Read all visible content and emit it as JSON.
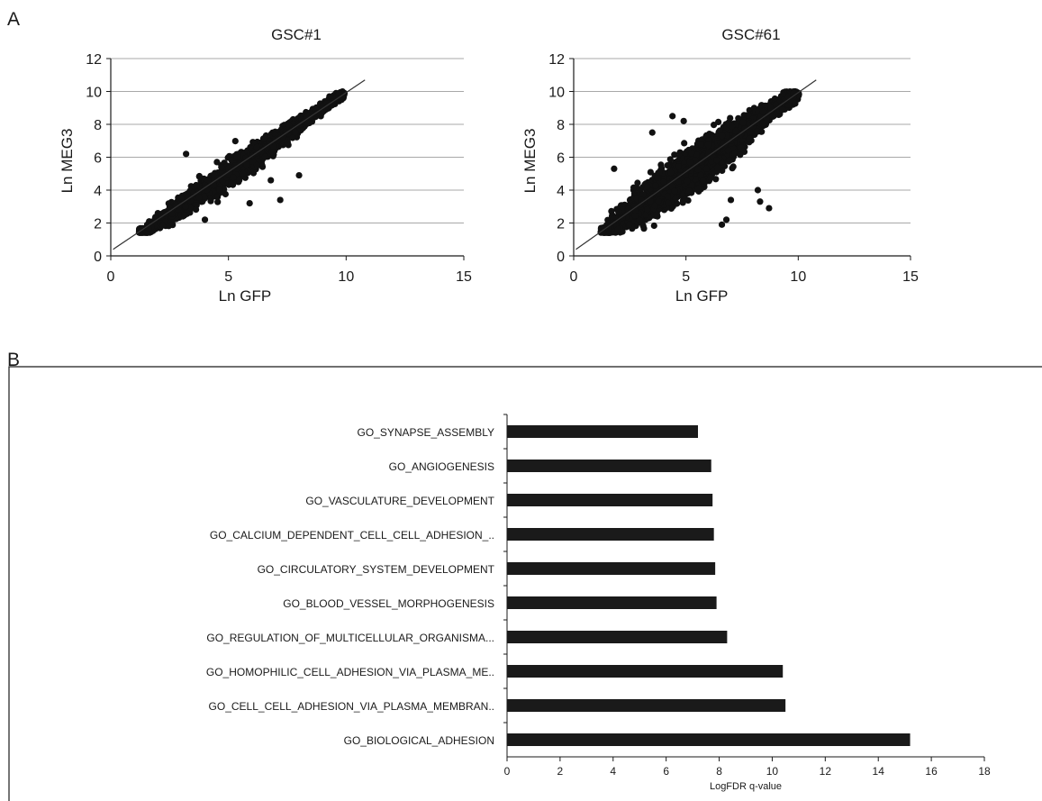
{
  "panels": {
    "a_label": "A",
    "b_label": "B"
  },
  "chart_data": [
    {
      "type": "scatter",
      "title": "GSC#1",
      "xlabel": "Ln GFP",
      "ylabel": "Ln MEG3",
      "xlim": [
        0,
        15
      ],
      "ylim": [
        0,
        12
      ],
      "xticks": [
        0,
        5,
        10,
        15
      ],
      "yticks": [
        0,
        2,
        4,
        6,
        8,
        10,
        12
      ],
      "grid": "horizontal",
      "trendline": {
        "x": [
          0.1,
          10.8
        ],
        "y": [
          0.4,
          10.7
        ]
      },
      "point_cloud": {
        "x_range": [
          1.2,
          9.9
        ],
        "y_range": [
          1.4,
          10.0
        ],
        "spread": 0.55
      },
      "points": [
        [
          1.3,
          1.6
        ],
        [
          2.0,
          2.6
        ],
        [
          3.0,
          3.5
        ],
        [
          4.0,
          4.3
        ],
        [
          5.0,
          5.3
        ],
        [
          6.0,
          6.1
        ],
        [
          7.0,
          7.1
        ],
        [
          8.0,
          8.0
        ],
        [
          9.0,
          9.1
        ],
        [
          9.7,
          9.9
        ],
        [
          3.2,
          6.2
        ],
        [
          6.8,
          4.6
        ],
        [
          5.9,
          3.2
        ],
        [
          7.2,
          3.4
        ],
        [
          8.0,
          4.9
        ],
        [
          4.0,
          2.2
        ]
      ]
    },
    {
      "type": "scatter",
      "title": "GSC#61",
      "xlabel": "Ln GFP",
      "ylabel": "Ln MEG3",
      "xlim": [
        0,
        15
      ],
      "ylim": [
        0,
        12
      ],
      "xticks": [
        0,
        5,
        10,
        15
      ],
      "yticks": [
        0,
        2,
        4,
        6,
        8,
        10,
        12
      ],
      "grid": "horizontal",
      "trendline": {
        "x": [
          0.1,
          10.8
        ],
        "y": [
          0.4,
          10.7
        ]
      },
      "point_cloud": {
        "x_range": [
          1.2,
          9.9
        ],
        "y_range": [
          1.4,
          10.0
        ],
        "spread": 1.0
      },
      "points": [
        [
          1.3,
          1.5
        ],
        [
          2.0,
          2.7
        ],
        [
          3.0,
          3.4
        ],
        [
          4.0,
          4.5
        ],
        [
          5.0,
          5.2
        ],
        [
          6.0,
          6.3
        ],
        [
          7.0,
          7.0
        ],
        [
          8.0,
          8.1
        ],
        [
          9.0,
          9.2
        ],
        [
          9.8,
          9.9
        ],
        [
          1.8,
          5.3
        ],
        [
          3.5,
          7.5
        ],
        [
          4.4,
          8.5
        ],
        [
          4.9,
          8.2
        ],
        [
          8.2,
          4.0
        ],
        [
          6.8,
          2.2
        ],
        [
          6.6,
          1.9
        ],
        [
          7.0,
          3.4
        ],
        [
          8.3,
          3.3
        ],
        [
          8.7,
          2.9
        ],
        [
          9.3,
          8.9
        ]
      ]
    },
    {
      "type": "bar",
      "orientation": "horizontal",
      "xlabel": "LogFDR q-value",
      "xlim": [
        0,
        18
      ],
      "xticks": [
        0,
        2,
        4,
        6,
        8,
        10,
        12,
        14,
        16,
        18
      ],
      "categories": [
        "GO_SYNAPSE_ASSEMBLY",
        "GO_ANGIOGENESIS",
        "GO_VASCULATURE_DEVELOPMENT",
        "GO_CALCIUM_DEPENDENT_CELL_CELL_ADHESION_..",
        "GO_CIRCULATORY_SYSTEM_DEVELOPMENT",
        "GO_BLOOD_VESSEL_MORPHOGENESIS",
        "GO_REGULATION_OF_MULTICELLULAR_ORGANISMA...",
        "GO_HOMOPHILIC_CELL_ADHESION_VIA_PLASMA_ME..",
        "GO_CELL_CELL_ADHESION_VIA_PLASMA_MEMBRAN..",
        "GO_BIOLOGICAL_ADHESION"
      ],
      "values": [
        7.2,
        7.7,
        7.75,
        7.8,
        7.85,
        7.9,
        8.3,
        10.4,
        10.5,
        15.2
      ],
      "color": "#1a1a1a"
    }
  ]
}
